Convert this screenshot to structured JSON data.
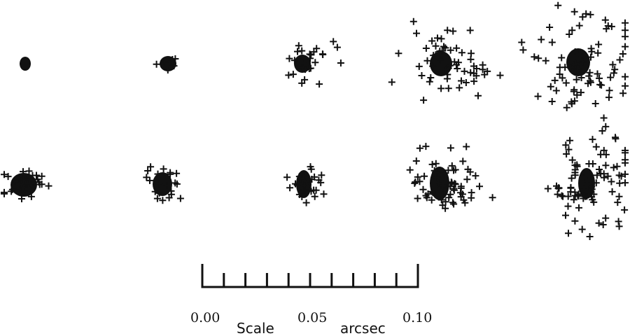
{
  "scale_bar": {
    "tick_labels": [
      "0.00",
      "0.05",
      "0.10"
    ],
    "scale_word": "Scale",
    "unit_word": "arcsec"
  },
  "colors": {
    "marks": "#111111",
    "background": "#ffffff"
  }
}
